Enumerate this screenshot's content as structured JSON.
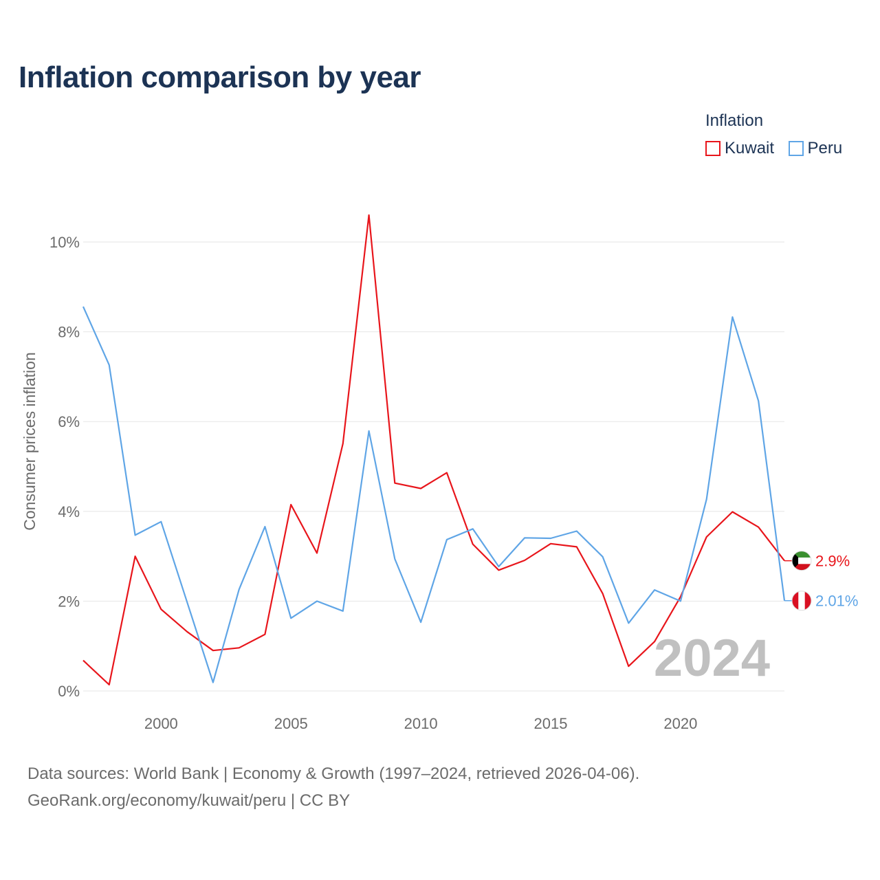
{
  "title": "Inflation comparison by year",
  "legend": {
    "title": "Inflation",
    "items": [
      {
        "label": "Kuwait",
        "color": "#e8151b"
      },
      {
        "label": "Peru",
        "color": "#5fa5e6"
      }
    ]
  },
  "watermark_year": "2024",
  "footer": {
    "line1": "Data sources: World Bank | Economy & Growth (1997–2024, retrieved 2026-04-06).",
    "line2": "GeoRank.org/economy/kuwait/peru | CC BY"
  },
  "chart_data": {
    "type": "line",
    "title": "Inflation comparison by year",
    "xlabel": "",
    "ylabel": "Consumer prices inflation",
    "x": [
      1997,
      1998,
      1999,
      2000,
      2001,
      2002,
      2003,
      2004,
      2005,
      2006,
      2007,
      2008,
      2009,
      2010,
      2011,
      2012,
      2013,
      2014,
      2015,
      2016,
      2017,
      2018,
      2019,
      2020,
      2021,
      2022,
      2023,
      2024
    ],
    "xlim": [
      1997,
      2024
    ],
    "ylim": [
      0,
      10
    ],
    "x_ticks": [
      2000,
      2005,
      2010,
      2015,
      2020
    ],
    "y_ticks": [
      0,
      2,
      4,
      6,
      8,
      10
    ],
    "y_tick_labels": [
      "0%",
      "2%",
      "4%",
      "6%",
      "8%",
      "10%"
    ],
    "grid": true,
    "series": [
      {
        "name": "Kuwait",
        "color": "#e8151b",
        "end_label": "2.9%",
        "values": [
          0.68,
          0.14,
          3.0,
          1.82,
          1.32,
          0.9,
          0.96,
          1.26,
          4.15,
          3.07,
          5.51,
          10.6,
          4.63,
          4.51,
          4.86,
          3.27,
          2.69,
          2.91,
          3.28,
          3.21,
          2.17,
          0.55,
          1.1,
          2.1,
          3.43,
          3.99,
          3.65,
          2.9
        ]
      },
      {
        "name": "Peru",
        "color": "#5fa5e6",
        "end_label": "2.01%",
        "values": [
          8.56,
          7.26,
          3.47,
          3.77,
          1.98,
          0.19,
          2.26,
          3.66,
          1.62,
          2.0,
          1.78,
          5.79,
          2.94,
          1.53,
          3.37,
          3.61,
          2.77,
          3.41,
          3.4,
          3.56,
          2.99,
          1.51,
          2.25,
          2.0,
          4.27,
          8.33,
          6.46,
          2.01
        ]
      }
    ]
  }
}
